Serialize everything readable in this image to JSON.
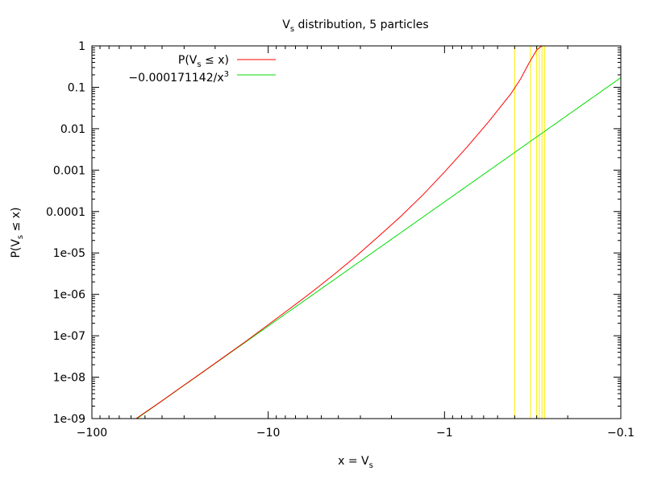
{
  "chart_data": {
    "type": "line",
    "title": {
      "main": "V",
      "sub": "s",
      "rest": " distribution, 5 particles"
    },
    "xlabel": {
      "pre": "x = V",
      "sub": "s",
      "post": ""
    },
    "ylabel": {
      "pre": "P(V",
      "sub": "s",
      "post": " ≤ x)"
    },
    "x_scale": "log-negative",
    "y_scale": "log",
    "xlim": [
      -100,
      -0.1
    ],
    "ylim": [
      1e-09,
      1
    ],
    "x_ticks": [
      {
        "value": -100,
        "label": "−100"
      },
      {
        "value": -10,
        "label": "−10"
      },
      {
        "value": -1,
        "label": "−1"
      },
      {
        "value": -0.1,
        "label": "−0.1"
      }
    ],
    "y_ticks": [
      {
        "value": 1,
        "label": "1"
      },
      {
        "value": 0.1,
        "label": "0.1"
      },
      {
        "value": 0.01,
        "label": "0.01"
      },
      {
        "value": 0.001,
        "label": "0.001"
      },
      {
        "value": 0.0001,
        "label": "0.0001"
      },
      {
        "value": 1e-05,
        "label": "1e-05"
      },
      {
        "value": 1e-06,
        "label": "1e-06"
      },
      {
        "value": 1e-07,
        "label": "1e-07"
      },
      {
        "value": 1e-08,
        "label": "1e-08"
      },
      {
        "value": 1e-09,
        "label": "1e-09"
      }
    ],
    "legend_position": "top-left",
    "series": [
      {
        "name": {
          "pre": "P(V",
          "sub": "s",
          "post": " ≤ x)"
        },
        "color": "#ff0000",
        "points": [
          [
            -56.2,
            1e-09
          ],
          [
            -42.2,
            2.3e-09
          ],
          [
            -31.6,
            5.5e-09
          ],
          [
            -23.7,
            1.3e-08
          ],
          [
            -17.8,
            3.1e-08
          ],
          [
            -13.3,
            7.5e-08
          ],
          [
            -10.0,
            1.85e-07
          ],
          [
            -7.5,
            4.6e-07
          ],
          [
            -5.6,
            1.18e-06
          ],
          [
            -4.2,
            3.1e-06
          ],
          [
            -3.16,
            8.5e-06
          ],
          [
            -2.37,
            2.5e-05
          ],
          [
            -1.78,
            7.5e-05
          ],
          [
            -1.33,
            0.00025
          ],
          [
            -1.0,
            0.0009
          ],
          [
            -0.75,
            0.0035
          ],
          [
            -0.56,
            0.015
          ],
          [
            -0.42,
            0.07
          ],
          [
            -0.37,
            0.16
          ],
          [
            -0.33,
            0.4
          ],
          [
            -0.3,
            0.8
          ],
          [
            -0.28,
            1.0
          ]
        ]
      },
      {
        "name": {
          "pre": "−0.000171142/x",
          "sup": "3",
          "post": ""
        },
        "color": "#00dd00",
        "coef": -0.000171142,
        "power": 3
      }
    ],
    "vertical_markers": {
      "color": "#ffee00",
      "x": [
        -0.4,
        -0.325,
        -0.3,
        -0.29,
        -0.28,
        -0.27
      ]
    }
  }
}
